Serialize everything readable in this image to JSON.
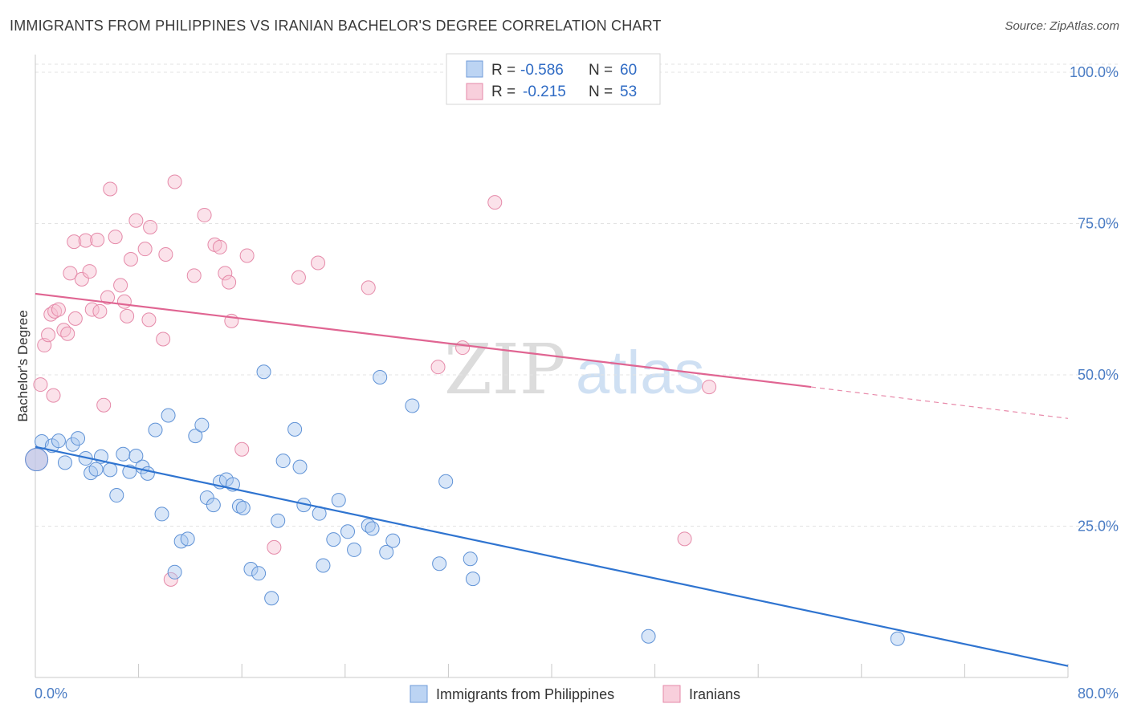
{
  "title": "IMMIGRANTS FROM PHILIPPINES VS IRANIAN BACHELOR'S DEGREE CORRELATION CHART",
  "source": "Source: ZipAtlas.com",
  "watermark": {
    "zip": "ZIP",
    "atlas": "atlas"
  },
  "colors": {
    "blue": "#4a86d8",
    "blue_fill": "#a9c8f0",
    "pink": "#e26a94",
    "pink_fill": "#f6bfd0",
    "tick": "#4a7cc4"
  },
  "chart_data": {
    "type": "scatter",
    "title": "IMMIGRANTS FROM PHILIPPINES VS IRANIAN BACHELOR'S DEGREE CORRELATION CHART",
    "xlabel": "",
    "ylabel": "Bachelor's Degree",
    "xlim": [
      0,
      80
    ],
    "ylim": [
      0,
      100
    ],
    "x_tick_labels": [
      "0.0%",
      "80.0%"
    ],
    "y_tick_labels": [
      "100.0%",
      "75.0%",
      "50.0%",
      "25.0%"
    ],
    "y_ticks": [
      100,
      75,
      50,
      25
    ],
    "grid": true,
    "legend": {
      "placement": "top-center",
      "entries": [
        {
          "r_label": "R = ",
          "r": "-0.586",
          "n_label": "N = ",
          "n": "60"
        },
        {
          "r_label": "R = ",
          "r": "-0.215",
          "n_label": "N = ",
          "n": "53"
        }
      ]
    },
    "bottom_legend": [
      "Immigrants from Philippines",
      "Iranians"
    ],
    "series": [
      {
        "name": "Immigrants from Philippines",
        "color": "#4a86d8",
        "trend": {
          "x": [
            0,
            80
          ],
          "y": [
            38.1,
            1.9
          ]
        },
        "points": [
          [
            0.1,
            36.0
          ],
          [
            0.5,
            39.0
          ],
          [
            1.3,
            38.3
          ],
          [
            1.8,
            39.1
          ],
          [
            2.3,
            35.5
          ],
          [
            2.9,
            38.5
          ],
          [
            3.3,
            39.5
          ],
          [
            3.9,
            36.2
          ],
          [
            4.3,
            33.8
          ],
          [
            4.7,
            34.4
          ],
          [
            5.1,
            36.5
          ],
          [
            5.8,
            34.3
          ],
          [
            6.3,
            30.1
          ],
          [
            6.8,
            36.9
          ],
          [
            7.3,
            34.0
          ],
          [
            7.8,
            36.6
          ],
          [
            8.3,
            34.8
          ],
          [
            8.7,
            33.7
          ],
          [
            9.3,
            40.9
          ],
          [
            9.8,
            27.0
          ],
          [
            10.3,
            43.3
          ],
          [
            10.8,
            17.4
          ],
          [
            11.3,
            22.5
          ],
          [
            11.8,
            22.9
          ],
          [
            12.4,
            39.9
          ],
          [
            12.9,
            41.7
          ],
          [
            13.3,
            29.7
          ],
          [
            13.8,
            28.5
          ],
          [
            14.3,
            32.3
          ],
          [
            14.8,
            32.7
          ],
          [
            15.3,
            31.9
          ],
          [
            15.8,
            28.3
          ],
          [
            16.1,
            28.0
          ],
          [
            16.7,
            17.9
          ],
          [
            17.3,
            17.2
          ],
          [
            17.7,
            50.5
          ],
          [
            18.3,
            13.1
          ],
          [
            18.8,
            25.9
          ],
          [
            19.2,
            35.8
          ],
          [
            20.1,
            41.0
          ],
          [
            20.5,
            34.8
          ],
          [
            20.8,
            28.5
          ],
          [
            22.0,
            27.1
          ],
          [
            22.3,
            18.5
          ],
          [
            23.1,
            22.8
          ],
          [
            23.5,
            29.3
          ],
          [
            24.2,
            24.1
          ],
          [
            24.7,
            21.1
          ],
          [
            25.8,
            25.1
          ],
          [
            26.1,
            24.6
          ],
          [
            26.7,
            49.6
          ],
          [
            27.2,
            20.7
          ],
          [
            27.7,
            22.6
          ],
          [
            29.2,
            44.9
          ],
          [
            31.3,
            18.8
          ],
          [
            31.8,
            32.4
          ],
          [
            33.7,
            19.6
          ],
          [
            33.9,
            16.3
          ],
          [
            47.5,
            6.8
          ],
          [
            66.8,
            6.4
          ]
        ]
      },
      {
        "name": "Iranians",
        "color": "#e26a94",
        "trend": {
          "x": [
            0,
            60.1
          ],
          "y": [
            63.4,
            48.0
          ]
        },
        "trend_dashed": {
          "x": [
            60.1,
            80
          ],
          "y": [
            48.0,
            42.8
          ]
        },
        "points": [
          [
            0.1,
            36.0
          ],
          [
            0.4,
            48.4
          ],
          [
            0.7,
            54.9
          ],
          [
            1.0,
            56.6
          ],
          [
            1.2,
            60.0
          ],
          [
            1.4,
            46.6
          ],
          [
            1.5,
            60.5
          ],
          [
            1.8,
            60.8
          ],
          [
            2.2,
            57.4
          ],
          [
            2.5,
            56.8
          ],
          [
            2.7,
            66.8
          ],
          [
            3.0,
            72.0
          ],
          [
            3.1,
            59.3
          ],
          [
            3.6,
            65.8
          ],
          [
            3.9,
            72.2
          ],
          [
            4.2,
            67.1
          ],
          [
            4.4,
            60.8
          ],
          [
            4.8,
            72.3
          ],
          [
            5.0,
            60.5
          ],
          [
            5.3,
            45.0
          ],
          [
            5.6,
            62.8
          ],
          [
            5.8,
            80.7
          ],
          [
            6.2,
            72.8
          ],
          [
            6.6,
            64.8
          ],
          [
            6.9,
            62.1
          ],
          [
            7.1,
            59.7
          ],
          [
            7.4,
            69.1
          ],
          [
            7.8,
            75.5
          ],
          [
            8.5,
            70.8
          ],
          [
            8.8,
            59.1
          ],
          [
            8.9,
            74.4
          ],
          [
            9.9,
            55.9
          ],
          [
            10.1,
            69.9
          ],
          [
            10.5,
            16.2
          ],
          [
            10.8,
            81.9
          ],
          [
            12.3,
            66.4
          ],
          [
            13.1,
            76.4
          ],
          [
            13.9,
            71.5
          ],
          [
            14.3,
            71.1
          ],
          [
            14.7,
            66.8
          ],
          [
            15.2,
            58.9
          ],
          [
            15.0,
            65.3
          ],
          [
            16.0,
            37.7
          ],
          [
            16.4,
            69.7
          ],
          [
            18.5,
            21.5
          ],
          [
            20.4,
            66.1
          ],
          [
            21.9,
            68.5
          ],
          [
            25.8,
            64.4
          ],
          [
            31.2,
            51.3
          ],
          [
            33.1,
            54.5
          ],
          [
            35.6,
            78.5
          ],
          [
            50.3,
            22.9
          ],
          [
            52.2,
            48.0
          ]
        ]
      }
    ]
  }
}
